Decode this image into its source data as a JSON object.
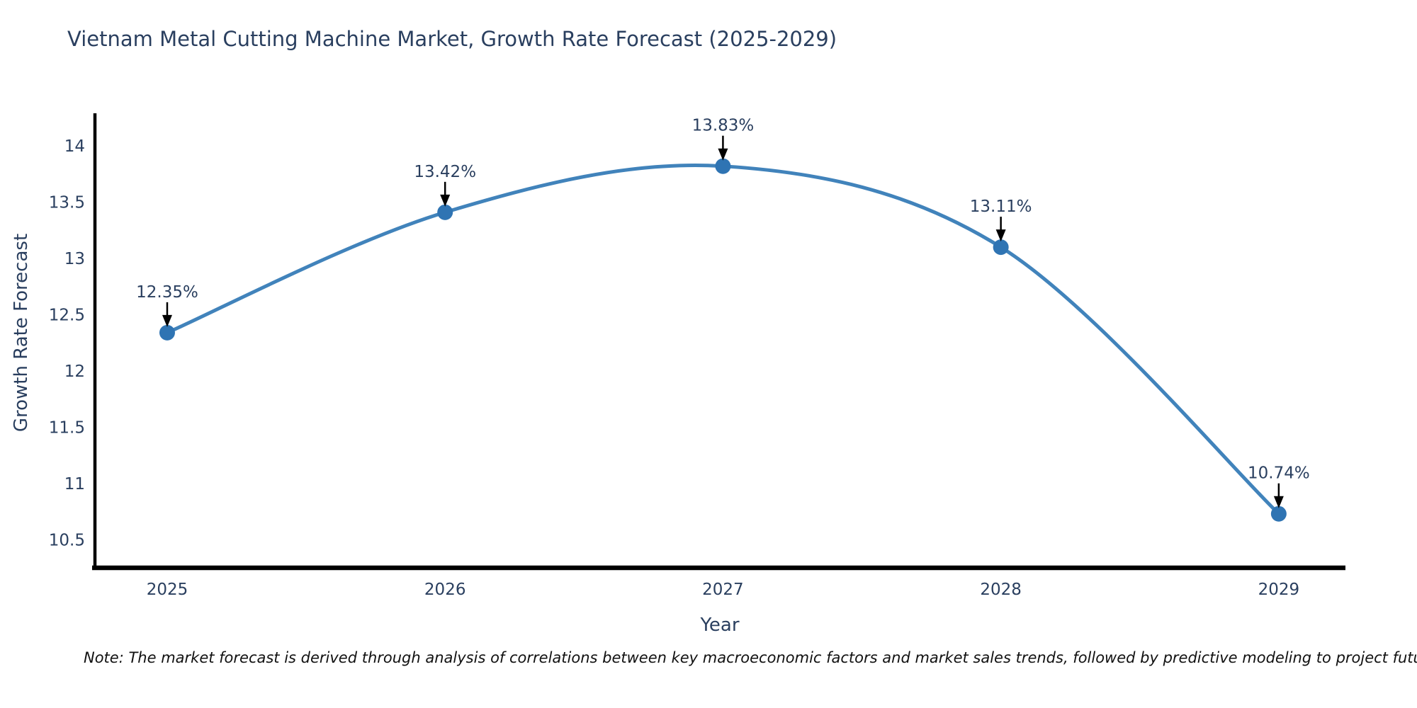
{
  "title": "Vietnam Metal Cutting Machine Market, Growth Rate Forecast (2025-2029)",
  "note": "Note: The market forecast is derived through analysis of correlations between key macroeconomic factors and market sales trends, followed by predictive modeling to project future sales.",
  "chart_data": {
    "type": "line",
    "title": "Vietnam Metal Cutting Machine Market, Growth Rate Forecast (2025-2029)",
    "xlabel": "Year",
    "ylabel": "Growth Rate Forecast",
    "x": [
      2025,
      2026,
      2027,
      2028,
      2029
    ],
    "values": [
      12.35,
      13.42,
      13.83,
      13.11,
      10.74
    ],
    "point_labels": [
      "12.35%",
      "13.42%",
      "13.83%",
      "13.11%",
      "10.74%"
    ],
    "x_tick_labels": [
      "2025",
      "2026",
      "2027",
      "2028",
      "2029"
    ],
    "y_tick_values": [
      10.5,
      11,
      11.5,
      12,
      12.5,
      13,
      13.5,
      14
    ],
    "y_tick_labels": [
      "10.5",
      "11",
      "11.5",
      "12",
      "12.5",
      "13",
      "13.5",
      "14"
    ],
    "x_range": [
      2024.74,
      2029.24
    ],
    "y_range": [
      10.26,
      14.3
    ],
    "line_shape": "spline",
    "grid": false,
    "legend": "none",
    "colors": {
      "line": "#4183bb",
      "marker": "#2f74b3",
      "axis": "#000000",
      "tick_text": "#2a3f5f",
      "annotation_text": "#2a3f5f",
      "arrow": "#000000",
      "title_text": "#2a3f5f",
      "note_text": "#111111"
    }
  }
}
